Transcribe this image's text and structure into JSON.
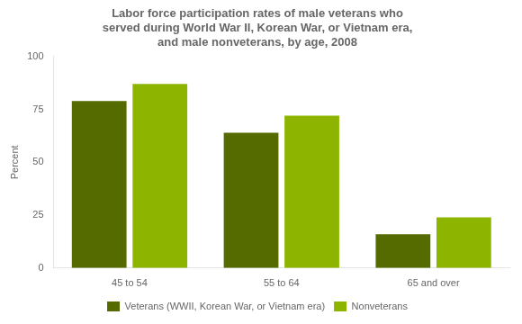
{
  "chart_data": {
    "type": "bar",
    "title": "Labor force participation rates of male veterans who\nserved during World War II, Korean War, or Vietnam era,\nand male nonveterans, by age, 2008",
    "categories": [
      "45 to 54",
      "55 to 64",
      "65 and over"
    ],
    "series": [
      {
        "name": "Veterans (WWII, Korean War, or Vietnam era)",
        "color": "#556b00",
        "values": [
          79,
          64,
          16
        ]
      },
      {
        "name": "Nonveterans",
        "color": "#8db500",
        "values": [
          87,
          72,
          24
        ]
      }
    ],
    "ylabel": "Percent",
    "ylim": [
      0,
      100
    ],
    "yticks": [
      0,
      25,
      50,
      75,
      100
    ],
    "grid": false,
    "legend": "bottom"
  }
}
